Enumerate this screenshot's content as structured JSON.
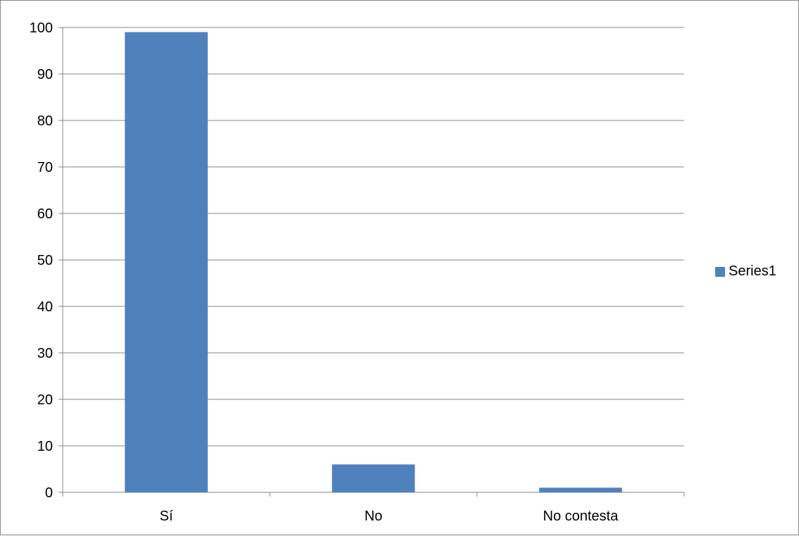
{
  "chart_data": {
    "type": "bar",
    "categories": [
      "Sí",
      "No",
      "No contesta"
    ],
    "series": [
      {
        "name": "Series1",
        "values": [
          99,
          6,
          1
        ],
        "color": "#4f81bd"
      }
    ],
    "title": "",
    "xlabel": "",
    "ylabel": "",
    "ylim": [
      0,
      100
    ],
    "yticks": [
      0,
      10,
      20,
      30,
      40,
      50,
      60,
      70,
      80,
      90,
      100
    ],
    "grid": true,
    "legend_position": "right"
  },
  "colors": {
    "bar": "#4f81bd",
    "gridline": "#868686",
    "border": "#868686"
  }
}
